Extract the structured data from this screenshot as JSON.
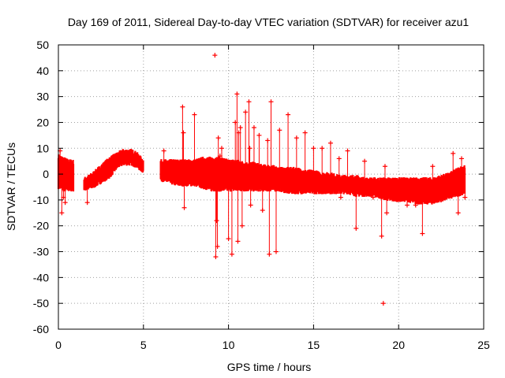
{
  "chart_data": {
    "type": "scatter",
    "title": "Day 169 of 2011, Sidereal Day-to-day VTEC variation (SDTVAR) for receiver azu1",
    "xlabel": "GPS time / hours",
    "ylabel": "SDTVAR / TECUs",
    "xlim": [
      0,
      25
    ],
    "ylim": [
      -60,
      50
    ],
    "xticks": [
      0,
      5,
      10,
      15,
      20,
      25
    ],
    "yticks": [
      -60,
      -50,
      -40,
      -30,
      -20,
      -10,
      0,
      10,
      20,
      30,
      40,
      50
    ],
    "grid": true,
    "marker": "+",
    "series_color": "#ff0000",
    "band_series": {
      "description": "dense point cloud, lower and upper envelope in TECU vs GPS hours",
      "x": [
        0.0,
        0.3,
        0.6,
        0.85,
        1.5,
        2.0,
        2.5,
        3.0,
        3.5,
        3.8,
        4.0,
        4.3,
        4.6,
        5.0,
        5.3,
        6.0,
        6.5,
        7.0,
        7.5,
        8.0,
        8.5,
        9.0,
        9.5,
        10.0,
        10.5,
        11.0,
        11.5,
        12.0,
        12.5,
        13.0,
        13.5,
        14.0,
        14.5,
        15.0,
        15.5,
        16.0,
        16.5,
        17.0,
        17.5,
        18.0,
        18.5,
        19.0,
        19.5,
        20.0,
        20.5,
        21.0,
        21.5,
        22.0,
        22.5,
        23.0,
        23.5,
        23.9
      ],
      "lower": [
        -5,
        -6,
        -6,
        -6,
        -6,
        -5,
        -3,
        -1,
        3,
        4,
        4,
        4,
        3,
        1,
        0,
        -2,
        -3,
        -4,
        -4,
        -4,
        -5,
        -6,
        -6,
        -6,
        -6,
        -6,
        -6,
        -6,
        -6,
        -6,
        -7,
        -7,
        -7,
        -7,
        -7,
        -7,
        -7,
        -7,
        -8,
        -8,
        -8,
        -9,
        -10,
        -10,
        -10,
        -11,
        -11,
        -11,
        -10,
        -9,
        -8,
        -7
      ],
      "upper": [
        7,
        6,
        5,
        5,
        -2,
        0,
        3,
        6,
        8,
        9,
        9,
        9,
        8,
        5,
        3,
        5,
        5,
        5,
        5,
        5,
        6,
        6,
        6,
        5,
        5,
        4,
        4,
        3,
        3,
        2,
        2,
        2,
        1,
        1,
        0,
        0,
        -1,
        -1,
        -1,
        -2,
        -2,
        -2,
        -2,
        -2,
        -2,
        -2,
        -2,
        -2,
        -1,
        0,
        2,
        3
      ],
      "gaps": [
        [
          0.9,
          1.5
        ],
        [
          5.0,
          6.0
        ]
      ]
    },
    "outliers": {
      "x": [
        0.1,
        0.2,
        0.3,
        0.4,
        1.7,
        6.2,
        7.3,
        7.35,
        7.4,
        8.0,
        9.2,
        9.25,
        9.3,
        9.35,
        9.4,
        9.5,
        9.6,
        10.0,
        10.2,
        10.4,
        10.5,
        10.55,
        10.6,
        10.7,
        10.8,
        11.0,
        11.2,
        11.25,
        11.3,
        11.5,
        11.8,
        12.0,
        12.3,
        12.4,
        12.5,
        12.8,
        13.0,
        13.5,
        14.0,
        14.5,
        15.0,
        15.5,
        16.0,
        16.5,
        16.6,
        17.0,
        17.5,
        18.0,
        18.5,
        19.0,
        19.1,
        19.2,
        19.3,
        19.8,
        20.5,
        21.0,
        21.4,
        22.0,
        22.5,
        22.8,
        23.2,
        23.5,
        23.7,
        23.9
      ],
      "y": [
        9,
        -15,
        -9,
        -11,
        -11,
        9,
        26,
        16,
        -13,
        23,
        46,
        -32,
        -18,
        -28,
        14,
        7,
        10,
        -25,
        -31,
        20,
        31,
        -26,
        16,
        18,
        -20,
        24,
        28,
        10,
        -12,
        18,
        15,
        -14,
        13,
        -31,
        28,
        -30,
        17,
        23,
        14,
        16,
        10,
        10,
        12,
        6,
        -9,
        9,
        -21,
        5,
        -9,
        -24,
        -50,
        3,
        -15,
        -7,
        -12,
        -12,
        -23,
        3,
        -10,
        -4,
        8,
        -15,
        6,
        -9
      ]
    }
  }
}
